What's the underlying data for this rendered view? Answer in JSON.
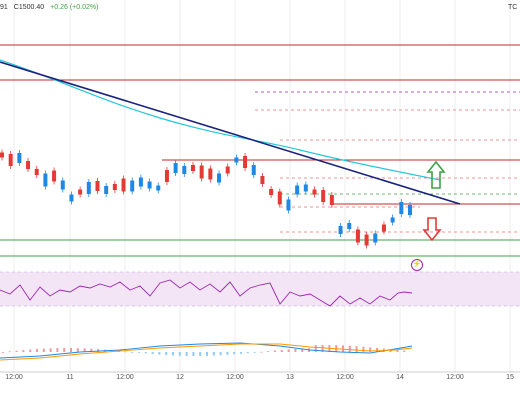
{
  "header": {
    "open_fragment": "91",
    "close_label": "C1500.40",
    "change": "+0.26 (+0.02%)",
    "pair_fragment": "TC"
  },
  "x_axis": {
    "labels": [
      "12:00",
      "11",
      "12:00",
      "12",
      "12:00",
      "13",
      "12:00",
      "14",
      "12:00",
      "15"
    ]
  },
  "indicator_icons": {
    "lightning": "⚡"
  },
  "colors": {
    "bullish": "#1e88e5",
    "bearish": "#e53935",
    "trendline": "#1a237e",
    "ma": "#26c6da",
    "resistance": "#c62828",
    "support": "#43a047",
    "rsi": "#9c27b0",
    "rsi_band": "#f3e5f5",
    "up_arrow": "#43a047",
    "down_arrow": "#e53935"
  },
  "chart_data": {
    "type": "candlestick",
    "candles_dir": [
      "d",
      "d",
      "u",
      "d",
      "d",
      "u",
      "d",
      "u",
      "u",
      "d",
      "u",
      "d",
      "u",
      "d",
      "d",
      "u",
      "u",
      "u",
      "u",
      "d",
      "u",
      "u",
      "d",
      "d",
      "d",
      "u",
      "d",
      "u",
      "d",
      "u",
      "d",
      "d",
      "d",
      "u",
      "u",
      "u",
      "d",
      "d",
      "d",
      "u",
      "u",
      "d",
      "d",
      "u",
      "d",
      "u",
      "u",
      "u"
    ],
    "rsi_trend": "oscillating",
    "macd_trend": "recovering",
    "annotations": [
      "descending trendline",
      "resistance zone",
      "support zone",
      "up arrow",
      "down arrow"
    ]
  }
}
